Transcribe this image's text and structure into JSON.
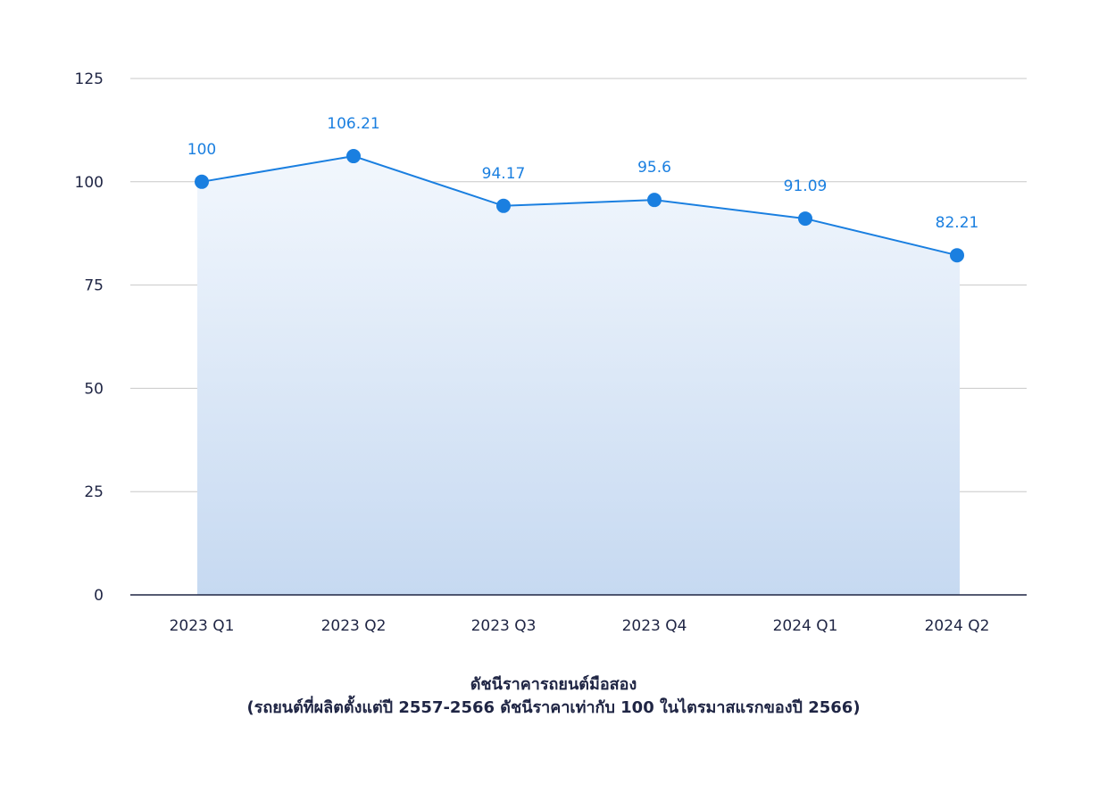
{
  "chart_data": {
    "type": "area",
    "categories": [
      "2023 Q1",
      "2023 Q2",
      "2023 Q3",
      "2023 Q4",
      "2024 Q1",
      "2024 Q2"
    ],
    "values": [
      100,
      106.21,
      94.17,
      95.6,
      91.09,
      82.21
    ],
    "data_labels": [
      "100",
      "106.21",
      "94.17",
      "95.6",
      "91.09",
      "82.21"
    ],
    "y_ticks": [
      0,
      25,
      50,
      75,
      100,
      125
    ],
    "ylim": [
      0,
      125
    ],
    "grid": true,
    "legend": "none",
    "caption_line1": "ดัชนีราคารถยนต์มือสอง",
    "caption_line2": "(รถยนต์ที่ผลิตตั้งแต่ปี 2557-2566 ดัชนีราคาเท่ากับ 100 ในไตรมาสแรกของปี 2566)",
    "colors": {
      "line": "#1a7fe0",
      "marker": "#1a7fe0",
      "label": "#1a7fe0",
      "area_top": "#f2f7fd",
      "area_bottom": "#c6d9f1",
      "grid": "#c8c8c8",
      "axis": "#1f2544",
      "text": "#1f2544"
    }
  }
}
